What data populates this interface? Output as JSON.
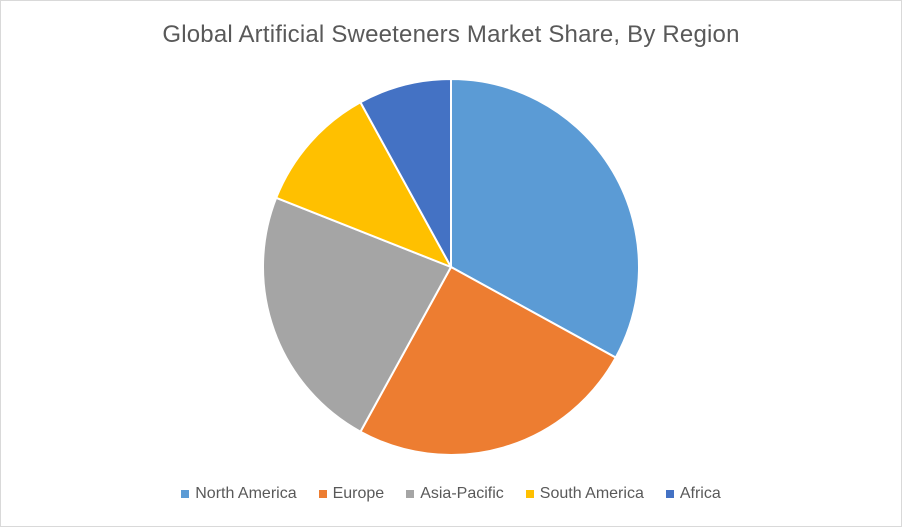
{
  "chart_data": {
    "type": "pie",
    "title": "Global Artificial Sweeteners Market Share, By Region",
    "legend_position": "bottom",
    "categories": [
      "North America",
      "Europe",
      "Asia-Pacific",
      "South America",
      "Africa"
    ],
    "values": [
      33,
      25,
      23,
      11,
      8
    ],
    "colors": [
      "#5b9bd5",
      "#ed7d31",
      "#a5a5a5",
      "#ffc000",
      "#4472c4"
    ]
  }
}
